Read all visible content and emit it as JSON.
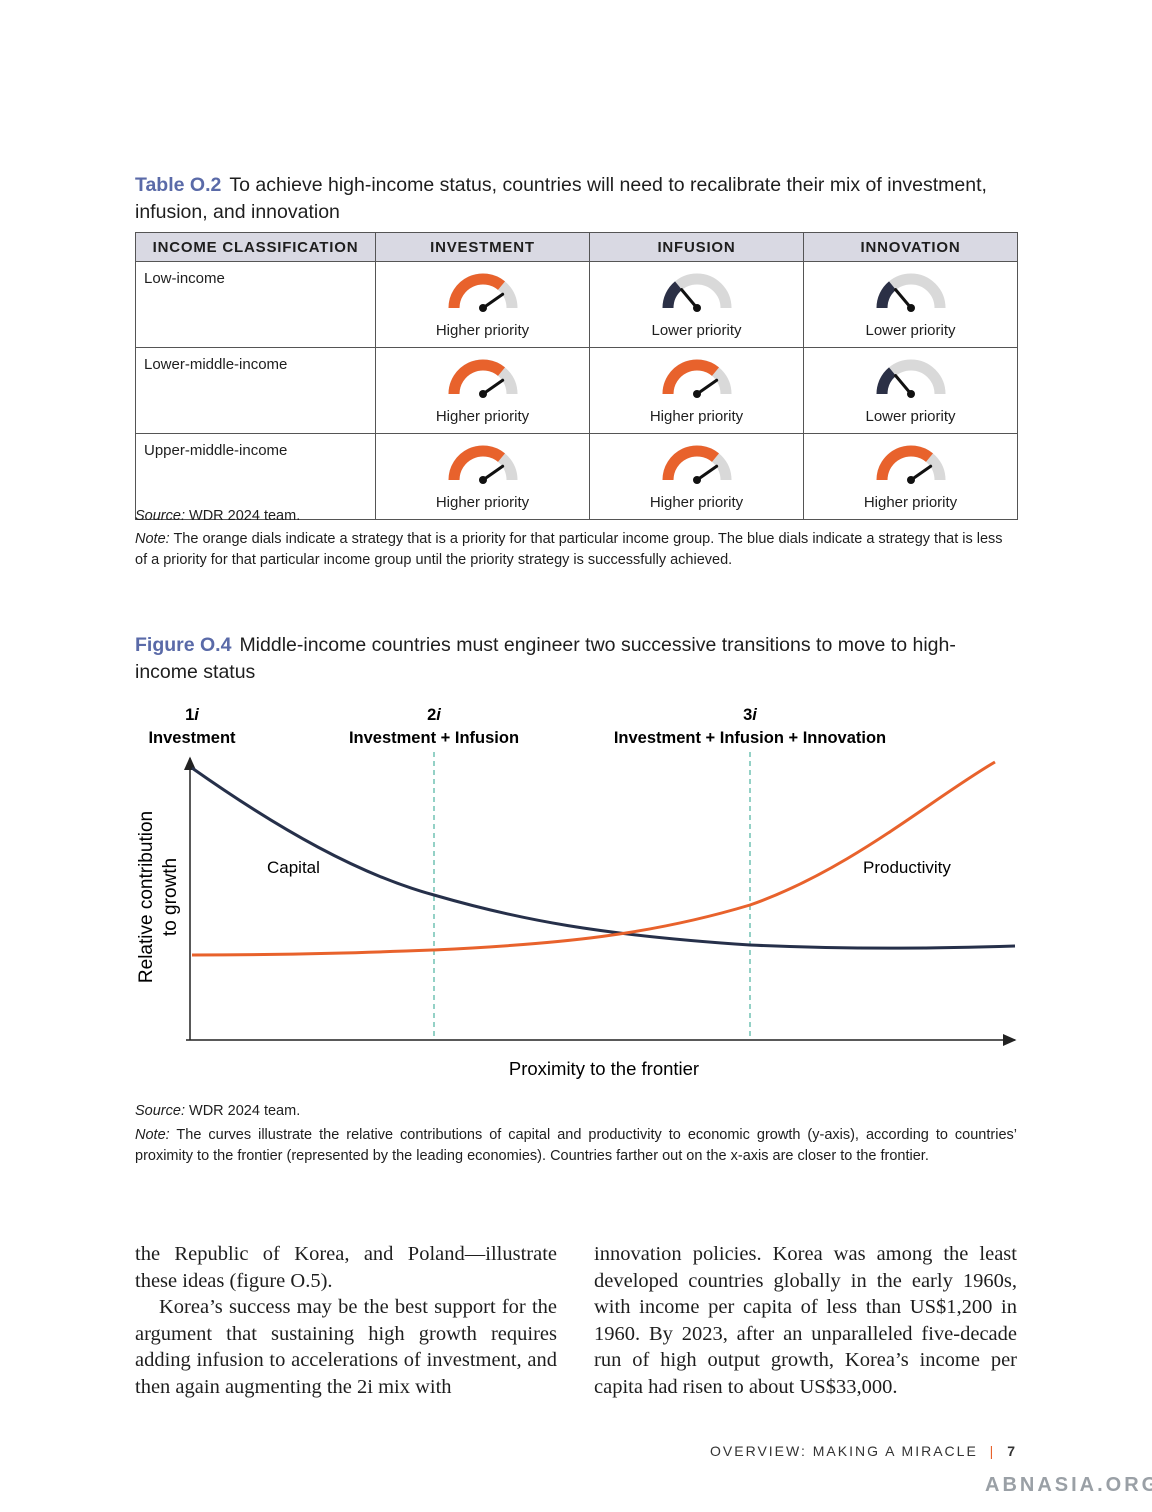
{
  "table": {
    "label": "Table O.2",
    "title": "To achieve high-income status, countries will need to recalibrate their mix of investment, infusion, and innovation",
    "headers": [
      "INCOME CLASSIFICATION",
      "INVESTMENT",
      "INFUSION",
      "INNOVATION"
    ],
    "rows": [
      {
        "classification": "Low-income",
        "cells": [
          {
            "label": "Higher priority",
            "dial": "orange"
          },
          {
            "label": "Lower priority",
            "dial": "blue"
          },
          {
            "label": "Lower priority",
            "dial": "blue"
          }
        ]
      },
      {
        "classification": "Lower-middle-income",
        "cells": [
          {
            "label": "Higher priority",
            "dial": "orange"
          },
          {
            "label": "Higher priority",
            "dial": "orange"
          },
          {
            "label": "Lower priority",
            "dial": "blue"
          }
        ]
      },
      {
        "classification": "Upper-middle-income",
        "cells": [
          {
            "label": "Higher priority",
            "dial": "orange"
          },
          {
            "label": "Higher priority",
            "dial": "orange"
          },
          {
            "label": "Higher priority",
            "dial": "orange"
          }
        ]
      }
    ],
    "source_label": "Source:",
    "source": "WDR 2024 team.",
    "note_label": "Note:",
    "note": "The orange dials indicate a strategy that is a priority for that particular income group. The blue dials indicate a strategy that is less of a priority for that particular income group until the priority strategy is successfully achieved."
  },
  "figure": {
    "label": "Figure O.4",
    "title": "Middle-income countries must engineer two successive transitions to move to high-income status",
    "stages": [
      {
        "number": "1",
        "suffix": "i",
        "name": "Investment"
      },
      {
        "number": "2",
        "suffix": "i",
        "name": "Investment + Infusion"
      },
      {
        "number": "3",
        "suffix": "i",
        "name": "Investment + Infusion + Innovation"
      }
    ],
    "y_label": [
      "Relative contribution",
      "to growth"
    ],
    "x_label": "Proximity to the frontier",
    "curve_labels": [
      "Capital",
      "Productivity"
    ],
    "source_label": "Source:",
    "source": "WDR 2024 team.",
    "note_label": "Note:",
    "note": "The curves illustrate the relative contributions of capital and productivity to economic growth (y-axis), according to countries’ proximity to the frontier (represented by the leading economies). Countries farther out on the x-axis are closer to the frontier."
  },
  "body": {
    "columns": [
      [
        "the Republic of Korea, and Poland—illustrate these ideas (figure O.5).",
        "Korea’s success may be the best support for the argument that sustaining high growth requires adding infusion to accelerations of investment, and then again augmenting the 2i mix with"
      ],
      [
        "innovation policies. Korea was among the least developed countries globally in the early 1960s, with income per capita of less than US$1,200 in 1960. By 2023, after an unparalleled five-decade run of high output growth, Korea’s income per capita had risen to about US$33,000."
      ]
    ]
  },
  "footer": {
    "running_head": "OVERVIEW: MAKING A MIRACLE",
    "page": "7"
  },
  "watermark": "ABNASIA.ORG"
}
